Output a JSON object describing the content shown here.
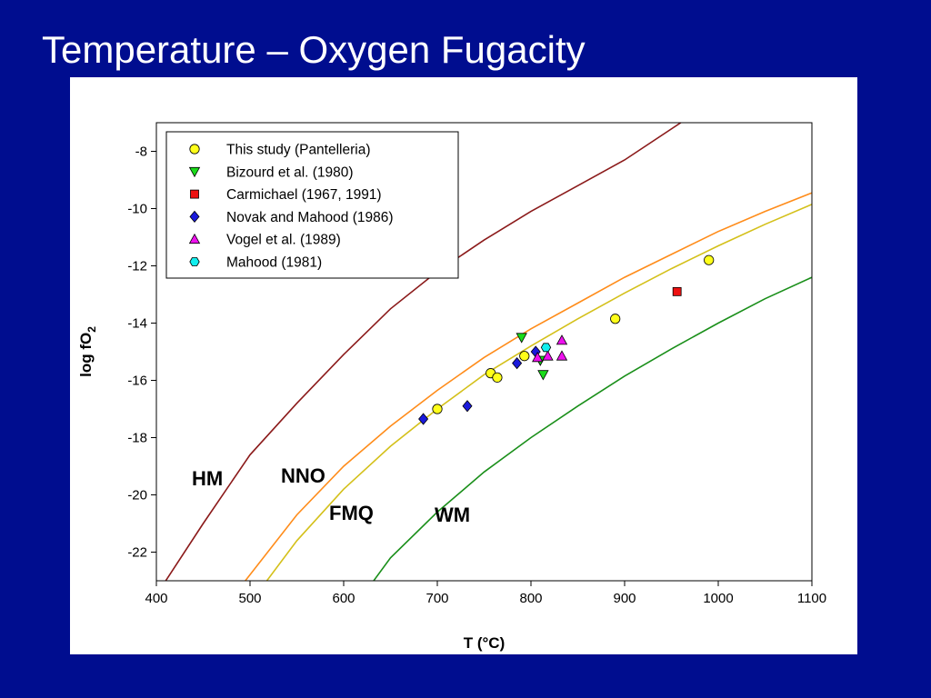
{
  "slide": {
    "title": "Temperature – Oxygen Fugacity"
  },
  "chart_data": {
    "type": "scatter",
    "xlabel": "T (°C)",
    "ylabel": "log fO",
    "ylabel_subscript": "2",
    "xlim": [
      400,
      1100
    ],
    "ylim": [
      -23,
      -7
    ],
    "x_ticks": [
      400,
      500,
      600,
      700,
      800,
      900,
      1000,
      1100
    ],
    "y_ticks": [
      -22,
      -20,
      -18,
      -16,
      -14,
      -12,
      -10,
      -8
    ],
    "grid": false,
    "legend_position": "top-left",
    "buffers": [
      {
        "name": "HM",
        "color": "#8b1a1a",
        "points": [
          [
            410,
            -23
          ],
          [
            450,
            -21
          ],
          [
            500,
            -18.6
          ],
          [
            550,
            -16.8
          ],
          [
            600,
            -15.1
          ],
          [
            650,
            -13.5
          ],
          [
            700,
            -12.2
          ],
          [
            750,
            -11.1
          ],
          [
            800,
            -10.1
          ],
          [
            850,
            -9.2
          ],
          [
            900,
            -8.3
          ],
          [
            960,
            -7
          ]
        ]
      },
      {
        "name": "NNO",
        "color": "#ff8c1a",
        "points": [
          [
            495,
            -23
          ],
          [
            550,
            -20.7
          ],
          [
            600,
            -19
          ],
          [
            650,
            -17.6
          ],
          [
            700,
            -16.35
          ],
          [
            750,
            -15.2
          ],
          [
            800,
            -14.2
          ],
          [
            850,
            -13.3
          ],
          [
            900,
            -12.4
          ],
          [
            950,
            -11.6
          ],
          [
            1000,
            -10.8
          ],
          [
            1050,
            -10.1
          ],
          [
            1100,
            -9.45
          ]
        ]
      },
      {
        "name": "FMQ",
        "color": "#d4c01a",
        "points": [
          [
            518,
            -23
          ],
          [
            550,
            -21.6
          ],
          [
            600,
            -19.8
          ],
          [
            650,
            -18.3
          ],
          [
            700,
            -17
          ],
          [
            750,
            -15.8
          ],
          [
            800,
            -14.8
          ],
          [
            850,
            -13.85
          ],
          [
            900,
            -12.95
          ],
          [
            950,
            -12.1
          ],
          [
            1000,
            -11.3
          ],
          [
            1050,
            -10.55
          ],
          [
            1100,
            -9.85
          ]
        ]
      },
      {
        "name": "WM",
        "color": "#1a8f1a",
        "points": [
          [
            632,
            -23
          ],
          [
            650,
            -22.2
          ],
          [
            700,
            -20.6
          ],
          [
            750,
            -19.2
          ],
          [
            800,
            -18
          ],
          [
            850,
            -16.9
          ],
          [
            900,
            -15.85
          ],
          [
            950,
            -14.9
          ],
          [
            1000,
            -14
          ],
          [
            1050,
            -13.15
          ],
          [
            1100,
            -12.4
          ]
        ]
      }
    ],
    "series": [
      {
        "name": "This study (Pantelleria)",
        "marker": "circle",
        "color": "#ffff1a",
        "points": [
          [
            700,
            -17
          ],
          [
            757,
            -15.75
          ],
          [
            764,
            -15.9
          ],
          [
            793,
            -15.15
          ],
          [
            890,
            -13.85
          ],
          [
            990,
            -11.8
          ]
        ]
      },
      {
        "name": "Bizourd et al. (1980)",
        "marker": "triangle-down",
        "color": "#1adb1a",
        "points": [
          [
            790,
            -14.5
          ],
          [
            810,
            -15.3
          ],
          [
            813,
            -15.8
          ]
        ]
      },
      {
        "name": "Carmichael (1967, 1991)",
        "marker": "square",
        "color": "#ee1111",
        "points": [
          [
            956,
            -12.9
          ]
        ]
      },
      {
        "name": "Novak and Mahood (1986)",
        "marker": "diamond",
        "color": "#1a1adb",
        "points": [
          [
            685,
            -17.35
          ],
          [
            732,
            -16.9
          ],
          [
            785,
            -15.4
          ],
          [
            805,
            -15
          ]
        ]
      },
      {
        "name": "Vogel et al. (1989)",
        "marker": "triangle-up",
        "color": "#ee11ee",
        "points": [
          [
            807,
            -15.2
          ],
          [
            818,
            -15.15
          ],
          [
            833,
            -14.6
          ],
          [
            833,
            -15.15
          ]
        ]
      },
      {
        "name": "Mahood (1981)",
        "marker": "hexagon",
        "color": "#11eeee",
        "points": [
          [
            816,
            -14.85
          ]
        ]
      }
    ]
  }
}
